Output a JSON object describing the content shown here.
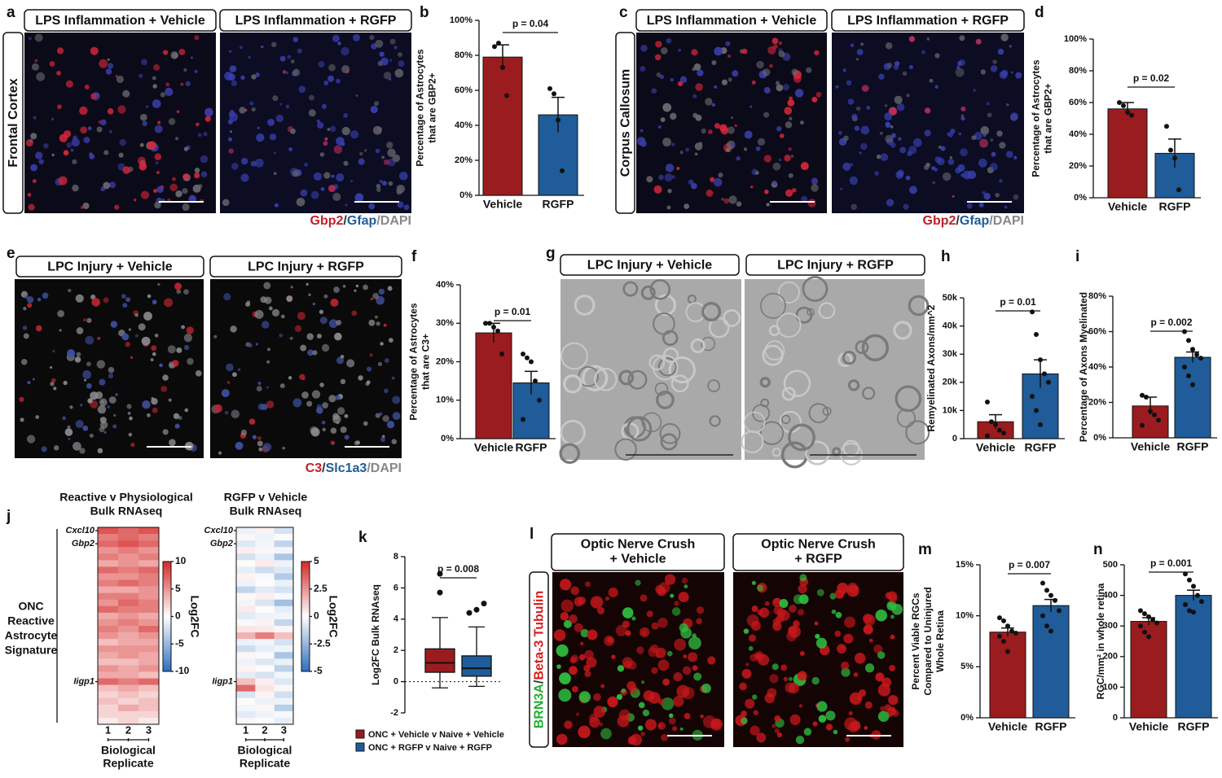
{
  "panels": {
    "a": {
      "letter": "a",
      "titles": [
        "LPS Inflammation + Vehicle",
        "LPS Inflammation + RGFP"
      ],
      "region": "Frontal Cortex",
      "stain": [
        "Gbp2",
        "/",
        "Gfap",
        "/DAPI"
      ]
    },
    "c": {
      "letter": "c",
      "titles": [
        "LPS Inflammation + Vehicle",
        "LPS Inflammation + RGFP"
      ],
      "region": "Corpus Callosum",
      "stain": [
        "Gbp2",
        "/",
        "Gfap",
        "/DAPI"
      ]
    },
    "e": {
      "letter": "e",
      "titles": [
        "LPC Injury + Vehicle",
        "LPC Injury + RGFP"
      ],
      "stain": [
        "C3",
        "/",
        "Slc1a3",
        "/DAPI"
      ]
    },
    "g": {
      "letter": "g",
      "titles": [
        "LPC Injury + Vehicle",
        "LPC Injury + RGFP"
      ]
    },
    "j": {
      "letter": "j",
      "signature": [
        "ONC",
        "Reactive",
        "Astrocyte",
        "Signature"
      ]
    },
    "l": {
      "letter": "l",
      "titles": [
        [
          "Optic Nerve Crush",
          "+ Vehicle"
        ],
        [
          "Optic Nerve Crush",
          "+ RGFP"
        ]
      ],
      "stain": [
        "BRN3A",
        "/",
        "Beta-3 Tubulin"
      ]
    }
  },
  "chart_data": [
    {
      "type": "bar",
      "letter": "b",
      "ylabel": [
        "Percentage of Astrocytes",
        "that are GBP2+"
      ],
      "categories": [
        "Vehicle",
        "RGFP"
      ],
      "values": [
        79,
        46
      ],
      "errors": [
        7,
        10
      ],
      "colors": [
        "#9b1c1f",
        "#1f5c99"
      ],
      "points": [
        [
          85,
          87,
          73,
          57
        ],
        [
          61,
          58,
          43,
          14
        ]
      ],
      "annotation": "p = 0.04",
      "ylim": [
        0,
        100
      ],
      "yticks": [
        {
          "value": 0,
          "label": "0%"
        },
        {
          "value": 20,
          "label": "20%"
        },
        {
          "value": 40,
          "label": "40%"
        },
        {
          "value": 60,
          "label": "60%"
        },
        {
          "value": 80,
          "label": "80%"
        },
        {
          "value": 100,
          "label": "100%"
        }
      ]
    },
    {
      "type": "bar",
      "letter": "d",
      "ylabel": [
        "Percentage of Astrocytes",
        "that are GBP2+"
      ],
      "categories": [
        "Vehicle",
        "RGFP"
      ],
      "values": [
        56,
        28
      ],
      "errors": [
        4,
        9
      ],
      "colors": [
        "#9b1c1f",
        "#1f5c99"
      ],
      "points": [
        [
          60,
          58,
          54,
          52
        ],
        [
          45,
          30,
          25,
          5
        ]
      ],
      "annotation": "p = 0.02",
      "ylim": [
        0,
        100
      ],
      "yticks": [
        {
          "value": 0,
          "label": "0%"
        },
        {
          "value": 20,
          "label": "20%"
        },
        {
          "value": 40,
          "label": "40%"
        },
        {
          "value": 60,
          "label": "60%"
        },
        {
          "value": 80,
          "label": "80%"
        },
        {
          "value": 100,
          "label": "100%"
        }
      ]
    },
    {
      "type": "bar",
      "letter": "f",
      "ylabel": [
        "Percentage of Astrocytes",
        "that are C3+"
      ],
      "categories": [
        "Vehicle",
        "RGFP"
      ],
      "values": [
        27.5,
        14.5
      ],
      "errors": [
        2.5,
        3
      ],
      "colors": [
        "#9b1c1f",
        "#1f5c99"
      ],
      "points": [
        [
          30,
          30,
          29,
          28,
          22
        ],
        [
          22,
          21,
          20,
          15,
          10,
          5
        ]
      ],
      "annotation": "p = 0.01",
      "ylim": [
        0,
        40
      ],
      "yticks": [
        {
          "value": 0,
          "label": "0%"
        },
        {
          "value": 10,
          "label": "10%"
        },
        {
          "value": 20,
          "label": "20%"
        },
        {
          "value": 30,
          "label": "30%"
        },
        {
          "value": 40,
          "label": "40%"
        }
      ]
    },
    {
      "type": "bar",
      "letter": "h",
      "ylabel": [
        "Remyelinated Axons/mm^2"
      ],
      "categories": [
        "Vehicle",
        "RGFP"
      ],
      "values": [
        6000,
        23000
      ],
      "errors": [
        2500,
        5000
      ],
      "colors": [
        "#9b1c1f",
        "#1f5c99"
      ],
      "points": [
        [
          13000,
          6000,
          5000,
          3000,
          2000,
          1000
        ],
        [
          45000,
          37000,
          28000,
          23000,
          20000,
          15000,
          10000,
          5000
        ]
      ],
      "annotation": "p = 0.01",
      "ylim": [
        0,
        50000
      ],
      "yticks": [
        0,
        {
          "value": 10000,
          "label": "10k"
        },
        {
          "value": 20000,
          "label": "20k"
        },
        {
          "value": 30000,
          "label": "30k"
        },
        {
          "value": 40000,
          "label": "40k"
        },
        {
          "value": 50000,
          "label": "50k"
        }
      ]
    },
    {
      "type": "bar",
      "letter": "i",
      "ylabel": [
        "Percentage of Axons Myelinated"
      ],
      "categories": [
        "Vehicle",
        "RGFP"
      ],
      "values": [
        18,
        45.5
      ],
      "errors": [
        5,
        3
      ],
      "colors": [
        "#9b1c1f",
        "#1f5c99"
      ],
      "points": [
        [
          24,
          23,
          15,
          13,
          10,
          7
        ],
        [
          60,
          55,
          50,
          47,
          45,
          40,
          35,
          30
        ]
      ],
      "annotation": "p = 0.002",
      "ylim": [
        0,
        80
      ],
      "yticks": [
        {
          "value": 0,
          "label": "0%"
        },
        {
          "value": 20,
          "label": "20%"
        },
        {
          "value": 40,
          "label": "40%"
        },
        {
          "value": 60,
          "label": "60%"
        },
        {
          "value": 80,
          "label": "80%"
        }
      ]
    },
    {
      "type": "bar",
      "letter": "m",
      "ylabel": [
        "Percent Viable RGCs",
        "Compared to Uninjured",
        "Whole Retina"
      ],
      "categories": [
        "Vehicle",
        "RGFP"
      ],
      "values": [
        8.4,
        11
      ],
      "errors": [
        0.4,
        0.6
      ],
      "colors": [
        "#9b1c1f",
        "#1f5c99"
      ],
      "points": [
        [
          9.8,
          9.5,
          9,
          8.5,
          8.3,
          8,
          7.5,
          6.5
        ],
        [
          13.2,
          12.5,
          12,
          11.5,
          10.5,
          10,
          9,
          8.5
        ]
      ],
      "annotation": "p = 0.007",
      "ylim": [
        0,
        15
      ],
      "yticks": [
        {
          "value": 0,
          "label": "0%"
        },
        {
          "value": 5,
          "label": "5%"
        },
        {
          "value": 10,
          "label": "10%"
        },
        {
          "value": 15,
          "label": "15%"
        }
      ]
    },
    {
      "type": "bar",
      "letter": "n",
      "ylabel": [
        "RGC/mm² in whole retina"
      ],
      "categories": [
        "Vehicle",
        "RGFP"
      ],
      "values": [
        315,
        400
      ],
      "errors": [
        12,
        17
      ],
      "colors": [
        "#9b1c1f",
        "#1f5c99"
      ],
      "points": [
        [
          350,
          340,
          330,
          320,
          310,
          300,
          280,
          265
        ],
        [
          470,
          450,
          430,
          400,
          380,
          370,
          350,
          345
        ]
      ],
      "annotation": "p = 0.001",
      "ylim": [
        0,
        500
      ],
      "yticks": [
        0,
        100,
        200,
        300,
        400,
        500
      ]
    },
    {
      "type": "box",
      "letter": "k",
      "ylabel": [
        "Log2FC Bulk RNAseq"
      ],
      "annotation": "p = 0.008",
      "ylim": [
        -2,
        8
      ],
      "yticks": [
        -2,
        0,
        2,
        4,
        6,
        8
      ],
      "series": [
        {
          "name": "ONC + Vehicle v Naive + Vehicle",
          "color": "#9b1c1f",
          "whisker_low": -0.4,
          "q1": 0.6,
          "median": 1.2,
          "q3": 2.1,
          "whisker_high": 4.1,
          "outliers": [
            6.9,
            5.7
          ]
        },
        {
          "name": "ONC + RGFP v Naive + RGFP",
          "color": "#1f5c99",
          "whisker_low": -0.3,
          "q1": 0.35,
          "median": 0.85,
          "q3": 1.65,
          "whisker_high": 3.5,
          "outliers": [
            4.4,
            4.6,
            5.0
          ]
        }
      ]
    },
    {
      "type": "heatmap",
      "title": [
        "Reactive v Physiological",
        "Bulk RNAseq"
      ],
      "columns": [
        "1",
        "2",
        "3"
      ],
      "xlabel": [
        "Biological",
        "Replicate"
      ],
      "zlabel": "Log2FC",
      "zlim": [
        -10,
        10
      ],
      "zticks": [
        10,
        5,
        0,
        -5,
        -10
      ],
      "row_labels": [
        "Cxcl10",
        null,
        "Gbp2",
        null,
        null,
        null,
        null,
        null,
        null,
        null,
        null,
        null,
        null,
        null,
        null,
        null,
        null,
        null,
        null,
        null,
        null,
        null,
        null,
        "Iigp1",
        null,
        null,
        null,
        null,
        null,
        null
      ],
      "values": [
        [
          8,
          7,
          8
        ],
        [
          6,
          7,
          6
        ],
        [
          7,
          8,
          7
        ],
        [
          5,
          6,
          5
        ],
        [
          6,
          5,
          6
        ],
        [
          4,
          5,
          4
        ],
        [
          7,
          6,
          7
        ],
        [
          5,
          5,
          6
        ],
        [
          6,
          7,
          6
        ],
        [
          4,
          4,
          5
        ],
        [
          6,
          6,
          5
        ],
        [
          5,
          7,
          6
        ],
        [
          7,
          6,
          6
        ],
        [
          4,
          5,
          4
        ],
        [
          5,
          6,
          5
        ],
        [
          6,
          5,
          7
        ],
        [
          5,
          4,
          5
        ],
        [
          3,
          4,
          4
        ],
        [
          5,
          5,
          5
        ],
        [
          4,
          5,
          4
        ],
        [
          3,
          3,
          4
        ],
        [
          5,
          4,
          5
        ],
        [
          4,
          4,
          3
        ],
        [
          7,
          6,
          7
        ],
        [
          3,
          4,
          3
        ],
        [
          2,
          3,
          2
        ],
        [
          3,
          2,
          3
        ],
        [
          2,
          4,
          3
        ],
        [
          2,
          2,
          2
        ],
        [
          1,
          2,
          1
        ]
      ]
    },
    {
      "type": "heatmap",
      "title": [
        "RGFP v Vehicle",
        "Bulk RNAseq"
      ],
      "columns": [
        "1",
        "2",
        "3"
      ],
      "xlabel": [
        "Biological",
        "Replicate"
      ],
      "zlabel": "Log2FC",
      "zlim": [
        -5,
        5
      ],
      "zticks": [
        5,
        2.5,
        0,
        -2.5,
        -5
      ],
      "row_labels": [
        "Cxcl10",
        null,
        "Gbp2",
        null,
        null,
        null,
        null,
        null,
        null,
        null,
        null,
        null,
        null,
        null,
        null,
        null,
        null,
        null,
        null,
        null,
        null,
        null,
        null,
        "Iigp1",
        null,
        null,
        null,
        null,
        null,
        null
      ],
      "values": [
        [
          -0.5,
          0.3,
          -1
        ],
        [
          0.2,
          -0.4,
          0.1
        ],
        [
          -0.8,
          -0.3,
          -1.5
        ],
        [
          0.4,
          0.2,
          -0.3
        ],
        [
          -1,
          -0.5,
          -2
        ],
        [
          0.1,
          0.5,
          -0.4
        ],
        [
          -0.6,
          -1.2,
          -0.8
        ],
        [
          0.3,
          -0.2,
          -1.8
        ],
        [
          -0.4,
          0.1,
          -0.5
        ],
        [
          -1.5,
          -0.7,
          -1
        ],
        [
          0.2,
          0.4,
          -0.2
        ],
        [
          -0.3,
          -0.9,
          -2.2
        ],
        [
          0.5,
          0.1,
          -0.6
        ],
        [
          -0.7,
          -0.4,
          -0.3
        ],
        [
          -0.2,
          0.3,
          -1.4
        ],
        [
          0.6,
          0.5,
          0.2
        ],
        [
          1.8,
          3,
          1.5
        ],
        [
          -0.5,
          -0.3,
          -1
        ],
        [
          -1.2,
          -0.6,
          -0.4
        ],
        [
          0.2,
          -0.2,
          -2
        ],
        [
          -0.4,
          -0.8,
          -0.5
        ],
        [
          0.3,
          0.1,
          -1.6
        ],
        [
          -0.6,
          -1,
          -0.3
        ],
        [
          1.5,
          0.4,
          -0.8
        ],
        [
          3.5,
          0.6,
          0.2
        ],
        [
          -0.9,
          0.3,
          -1.1
        ],
        [
          0.1,
          -0.5,
          -0.4
        ],
        [
          -0.3,
          0.2,
          -1.7
        ],
        [
          -0.7,
          -0.4,
          -0.2
        ],
        [
          0.2,
          -0.1,
          -0.6
        ]
      ]
    }
  ]
}
